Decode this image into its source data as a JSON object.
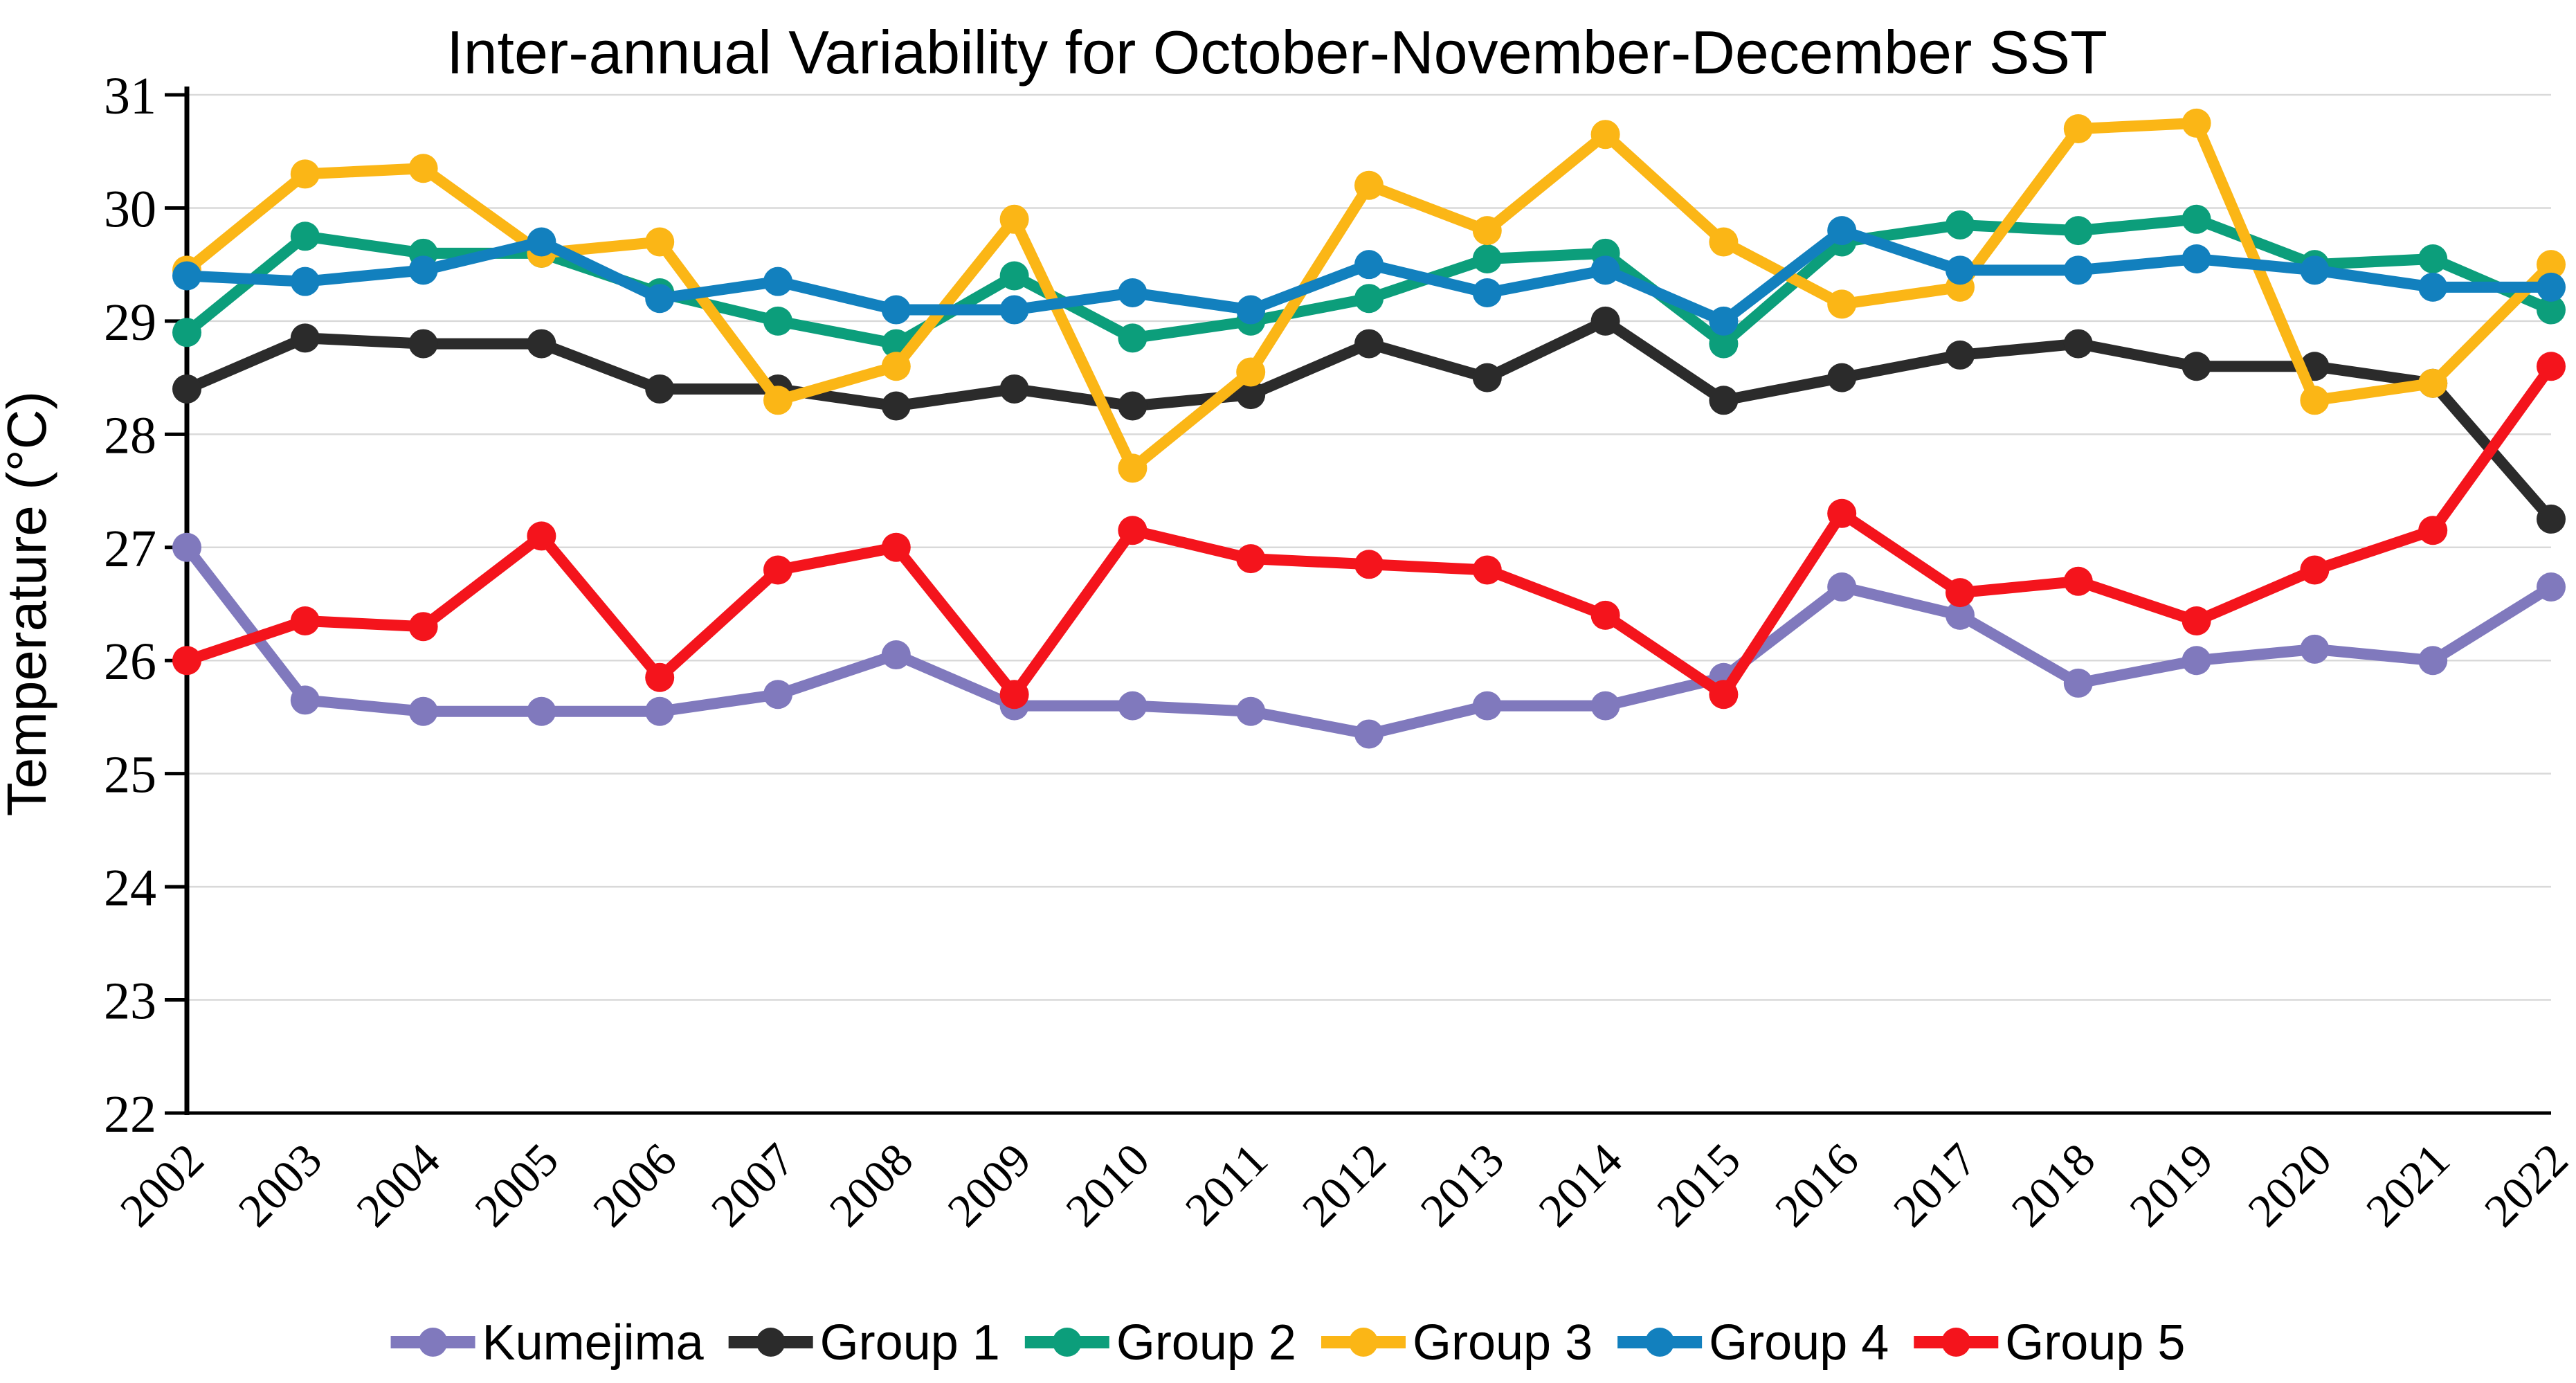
{
  "title": "Inter-annual Variability for October-November-December SST",
  "y_axis": {
    "label": "Temperature (°C)",
    "ticks": [
      31,
      30,
      29,
      28,
      27,
      26,
      25,
      24,
      23,
      22
    ],
    "min": 22,
    "max": 31
  },
  "x_axis": {
    "labels": [
      "2002",
      "2003",
      "2004",
      "2005",
      "2006",
      "2007",
      "2008",
      "2009",
      "2010",
      "2011",
      "2012",
      "2013",
      "2014",
      "2015",
      "2016",
      "2017",
      "2018",
      "2019",
      "2020",
      "2021",
      "2022"
    ]
  },
  "legend": {
    "position": "bottom",
    "entries": [
      "Kumejima",
      "Group 1",
      "Group 2",
      "Group 3",
      "Group 4",
      "Group 5"
    ]
  },
  "style": {
    "grid_color": "#d9d9d9",
    "axis_color": "#000000",
    "background": "#ffffff"
  },
  "chart_data": {
    "type": "line",
    "title": "Inter-annual Variability for October-November-December SST",
    "xlabel": "",
    "ylabel": "Temperature (°C)",
    "ylim": [
      22,
      31
    ],
    "grid": true,
    "legend_position": "bottom",
    "x": [
      2002,
      2003,
      2004,
      2005,
      2006,
      2007,
      2008,
      2009,
      2010,
      2011,
      2012,
      2013,
      2014,
      2015,
      2016,
      2017,
      2018,
      2019,
      2020,
      2021,
      2022
    ],
    "series": [
      {
        "name": "Kumejima",
        "color": "#8079bd",
        "values": [
          27.0,
          25.65,
          25.55,
          25.55,
          25.55,
          25.7,
          26.05,
          25.6,
          25.6,
          25.55,
          25.35,
          25.6,
          25.6,
          25.85,
          26.65,
          26.4,
          25.8,
          26.0,
          26.1,
          26.0,
          26.65
        ]
      },
      {
        "name": "Group 1",
        "color": "#2b2b2b",
        "values": [
          28.4,
          28.85,
          28.8,
          28.8,
          28.4,
          28.4,
          28.25,
          28.4,
          28.25,
          28.35,
          28.8,
          28.5,
          29.0,
          28.3,
          28.5,
          28.7,
          28.8,
          28.6,
          28.6,
          28.45,
          27.25
        ]
      },
      {
        "name": "Group 2",
        "color": "#0c9e7b",
        "values": [
          28.9,
          29.75,
          29.6,
          29.6,
          29.25,
          29.0,
          28.8,
          29.4,
          28.85,
          29.0,
          29.2,
          29.55,
          29.6,
          28.8,
          29.7,
          29.85,
          29.8,
          29.9,
          29.5,
          29.55,
          29.1
        ]
      },
      {
        "name": "Group 3",
        "color": "#fbb616",
        "values": [
          29.45,
          30.3,
          30.35,
          29.6,
          29.7,
          28.3,
          28.6,
          29.9,
          27.7,
          28.55,
          30.2,
          29.8,
          30.65,
          29.7,
          29.15,
          29.3,
          30.7,
          30.75,
          28.3,
          28.45,
          29.5
        ]
      },
      {
        "name": "Group 4",
        "color": "#1280be",
        "values": [
          29.4,
          29.35,
          29.45,
          29.7,
          29.2,
          29.35,
          29.1,
          29.1,
          29.25,
          29.1,
          29.5,
          29.25,
          29.45,
          29.0,
          29.8,
          29.45,
          29.45,
          29.55,
          29.45,
          29.3,
          29.3
        ]
      },
      {
        "name": "Group 5",
        "color": "#f4141c",
        "values": [
          26.0,
          26.35,
          26.3,
          27.1,
          25.85,
          26.8,
          27.0,
          25.7,
          27.15,
          26.9,
          26.85,
          26.8,
          26.4,
          25.7,
          27.3,
          26.6,
          26.7,
          26.35,
          26.8,
          27.15,
          28.6
        ]
      }
    ]
  }
}
